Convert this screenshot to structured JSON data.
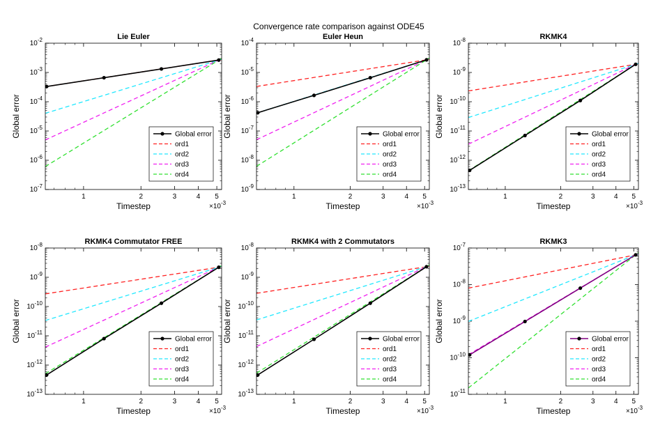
{
  "figure": {
    "title": "Convergence rate comparison against ODE45"
  },
  "chart_data": [
    {
      "type": "line",
      "title": "Lie Euler",
      "xlabel": "Timestep",
      "ylabel": "Global error",
      "xscale": "log",
      "yscale": "log",
      "xlim": [
        0.00063,
        0.0053
      ],
      "ylim": [
        1e-07,
        0.01
      ],
      "xticks": [
        "1",
        "2",
        "3",
        "4",
        "5"
      ],
      "x_multiplier": "×10",
      "x_multiplier_exp": "-3",
      "yticks": [
        {
          "base": "10",
          "exp": "-7"
        },
        {
          "base": "10",
          "exp": "-6"
        },
        {
          "base": "10",
          "exp": "-5"
        },
        {
          "base": "10",
          "exp": "-4"
        },
        {
          "base": "10",
          "exp": "-3"
        },
        {
          "base": "10",
          "exp": "-2"
        }
      ],
      "legend_position": "lower-right",
      "legend": [
        "Global error",
        "ord1",
        "ord2",
        "ord3",
        "ord4"
      ],
      "colors": {
        "Global error": "#000000",
        "ord1": "#ff2020",
        "ord2": "#20e8ff",
        "ord3": "#f020f0",
        "ord4": "#30e030"
      },
      "error_line_color": "#000000",
      "x": [
        0.00064,
        0.00128,
        0.00256,
        0.00512
      ],
      "global_error": [
        0.00033,
        0.00066,
        0.00132,
        0.00265
      ],
      "ref_anchor": 0.00265
    },
    {
      "type": "line",
      "title": "Euler Heun",
      "xlabel": "Timestep",
      "ylabel": "Global error",
      "xscale": "log",
      "yscale": "log",
      "xlim": [
        0.00063,
        0.0053
      ],
      "ylim": [
        1e-09,
        0.0001
      ],
      "xticks": [
        "1",
        "2",
        "3",
        "4",
        "5"
      ],
      "x_multiplier": "×10",
      "x_multiplier_exp": "-3",
      "yticks": [
        {
          "base": "10",
          "exp": "-9"
        },
        {
          "base": "10",
          "exp": "-8"
        },
        {
          "base": "10",
          "exp": "-7"
        },
        {
          "base": "10",
          "exp": "-6"
        },
        {
          "base": "10",
          "exp": "-5"
        },
        {
          "base": "10",
          "exp": "-4"
        }
      ],
      "legend_position": "lower-right",
      "legend": [
        "Global error",
        "ord1",
        "ord2",
        "ord3",
        "ord4"
      ],
      "colors": {
        "Global error": "#000000",
        "ord1": "#ff2020",
        "ord2": "#20e8ff",
        "ord3": "#f020f0",
        "ord4": "#30e030"
      },
      "error_line_color": "#000000",
      "x": [
        0.00064,
        0.00128,
        0.00256,
        0.00512
      ],
      "global_error": [
        4.2e-07,
        1.65e-06,
        6.6e-06,
        2.7e-05
      ],
      "ref_anchor": 2.7e-05
    },
    {
      "type": "line",
      "title": "RKMK4",
      "xlabel": "Timestep",
      "ylabel": "Global error",
      "xscale": "log",
      "yscale": "log",
      "xlim": [
        0.00063,
        0.0053
      ],
      "ylim": [
        1e-13,
        1e-08
      ],
      "xticks": [
        "1",
        "2",
        "3",
        "4",
        "5"
      ],
      "x_multiplier": "×10",
      "x_multiplier_exp": "-3",
      "yticks": [
        {
          "base": "10",
          "exp": "-13"
        },
        {
          "base": "10",
          "exp": "-12"
        },
        {
          "base": "10",
          "exp": "-11"
        },
        {
          "base": "10",
          "exp": "-10"
        },
        {
          "base": "10",
          "exp": "-9"
        },
        {
          "base": "10",
          "exp": "-8"
        }
      ],
      "legend_position": "lower-right",
      "legend": [
        "Global error",
        "ord1",
        "ord2",
        "ord3",
        "ord4"
      ],
      "colors": {
        "Global error": "#000000",
        "ord1": "#ff2020",
        "ord2": "#20e8ff",
        "ord3": "#f020f0",
        "ord4": "#30e030"
      },
      "error_line_color": "#000000",
      "x": [
        0.00064,
        0.00128,
        0.00256,
        0.00512
      ],
      "global_error": [
        4.5e-13,
        7e-12,
        1.1e-10,
        1.9e-09
      ],
      "ref_anchor": 1.9e-09
    },
    {
      "type": "line",
      "title": "RKMK4 Commutator FREE",
      "xlabel": "Timestep",
      "ylabel": "Global error",
      "xscale": "log",
      "yscale": "log",
      "xlim": [
        0.00063,
        0.0053
      ],
      "ylim": [
        1e-13,
        1e-08
      ],
      "xticks": [
        "1",
        "2",
        "3",
        "4",
        "5"
      ],
      "x_multiplier": "×10",
      "x_multiplier_exp": "-3",
      "yticks": [
        {
          "base": "10",
          "exp": "-13"
        },
        {
          "base": "10",
          "exp": "-12"
        },
        {
          "base": "10",
          "exp": "-11"
        },
        {
          "base": "10",
          "exp": "-10"
        },
        {
          "base": "10",
          "exp": "-9"
        },
        {
          "base": "10",
          "exp": "-8"
        }
      ],
      "legend_position": "lower-right",
      "legend": [
        "Global error",
        "ord1",
        "ord2",
        "ord3",
        "ord4"
      ],
      "colors": {
        "Global error": "#000000",
        "ord1": "#ff2020",
        "ord2": "#20e8ff",
        "ord3": "#f020f0",
        "ord4": "#30e030"
      },
      "error_line_color": "#000000",
      "x": [
        0.00064,
        0.00128,
        0.00256,
        0.00512
      ],
      "global_error": [
        4.6e-13,
        8e-12,
        1.3e-10,
        2.2e-09
      ],
      "ref_anchor": 2.2e-09
    },
    {
      "type": "line",
      "title": "RKMK4 with 2 Commutators",
      "xlabel": "Timestep",
      "ylabel": "Global error",
      "xscale": "log",
      "yscale": "log",
      "xlim": [
        0.00063,
        0.0053
      ],
      "ylim": [
        1e-13,
        1e-08
      ],
      "xticks": [
        "1",
        "2",
        "3",
        "4",
        "5"
      ],
      "x_multiplier": "×10",
      "x_multiplier_exp": "-3",
      "yticks": [
        {
          "base": "10",
          "exp": "-13"
        },
        {
          "base": "10",
          "exp": "-12"
        },
        {
          "base": "10",
          "exp": "-11"
        },
        {
          "base": "10",
          "exp": "-10"
        },
        {
          "base": "10",
          "exp": "-9"
        },
        {
          "base": "10",
          "exp": "-8"
        }
      ],
      "legend_position": "lower-right",
      "legend": [
        "Global error",
        "ord1",
        "ord2",
        "ord3",
        "ord4"
      ],
      "colors": {
        "Global error": "#000000",
        "ord1": "#ff2020",
        "ord2": "#20e8ff",
        "ord3": "#f020f0",
        "ord4": "#30e030"
      },
      "error_line_color": "#000000",
      "x": [
        0.00064,
        0.00128,
        0.00256,
        0.00512
      ],
      "global_error": [
        4.6e-13,
        7.6e-12,
        1.3e-10,
        2.3e-09
      ],
      "ref_anchor": 2.3e-09
    },
    {
      "type": "line",
      "title": "RKMK3",
      "xlabel": "Timestep",
      "ylabel": "Global error",
      "xscale": "log",
      "yscale": "log",
      "xlim": [
        0.00063,
        0.0053
      ],
      "ylim": [
        1e-11,
        1e-07
      ],
      "xticks": [
        "1",
        "2",
        "3",
        "4",
        "5"
      ],
      "x_multiplier": "×10",
      "x_multiplier_exp": "-3",
      "yticks": [
        {
          "base": "10",
          "exp": "-11"
        },
        {
          "base": "10",
          "exp": "-10"
        },
        {
          "base": "10",
          "exp": "-9"
        },
        {
          "base": "10",
          "exp": "-8"
        },
        {
          "base": "10",
          "exp": "-7"
        }
      ],
      "legend_position": "lower-right",
      "legend": [
        "Global error",
        "ord1",
        "ord2",
        "ord3",
        "ord4"
      ],
      "colors": {
        "Global error": "#000000",
        "ord1": "#ff2020",
        "ord2": "#20e8ff",
        "ord3": "#f020f0",
        "ord4": "#30e030"
      },
      "error_line_color": "#800080",
      "x": [
        0.00064,
        0.00128,
        0.00256,
        0.00512
      ],
      "global_error": [
        1.2e-10,
        9.8e-10,
        8e-09,
        6.5e-08
      ],
      "ref_anchor": 6.5e-08
    }
  ]
}
